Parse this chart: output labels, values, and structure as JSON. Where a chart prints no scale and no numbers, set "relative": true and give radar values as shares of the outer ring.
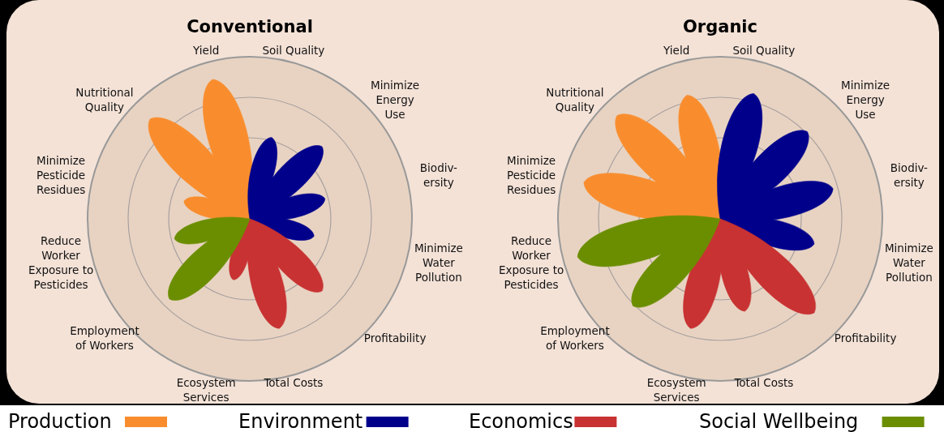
{
  "chart_data": [
    {
      "type": "radar",
      "title": "Conventional",
      "relative": true,
      "grid": true,
      "legend": "bottom",
      "categories": [
        "Yield",
        "Soil Quality",
        "Minimize\nEnergy\nUse",
        "Biodiv-\nersity",
        "Minimize\nWater\nPollution",
        "Profitability",
        "Total Costs",
        "Ecosystem\nServices",
        "Employment\nof Workers",
        "Reduce\nWorker\nExposure to\nPesticides",
        "Minimize\nPesticide\nResidues",
        "Nutritional\nQuality"
      ],
      "series": [
        {
          "name": "Production",
          "color": "#f98d2e",
          "values": [
            0.89,
            null,
            null,
            null,
            null,
            null,
            null,
            null,
            null,
            null,
            0.42,
            0.87
          ]
        },
        {
          "name": "Environment",
          "color": "#00008b",
          "values": [
            null,
            0.52,
            0.63,
            0.48,
            0.41,
            null,
            null,
            null,
            null,
            null,
            null,
            null
          ]
        },
        {
          "name": "Economics",
          "color": "#c83232",
          "values": [
            null,
            null,
            null,
            null,
            null,
            0.63,
            0.7,
            0.39,
            null,
            null,
            null,
            null
          ]
        },
        {
          "name": "Social Wellbeing",
          "color": "#6b8e00",
          "values": [
            null,
            null,
            null,
            null,
            null,
            null,
            null,
            null,
            0.7,
            0.48,
            null,
            null
          ]
        }
      ]
    },
    {
      "type": "radar",
      "title": "Organic",
      "relative": true,
      "grid": true,
      "categories": [
        "Yield",
        "Soil Quality",
        "Minimize\nEnergy\nUse",
        "Biodiv-\nersity",
        "Minimize\nWater\nPollution",
        "Profitability",
        "Total Costs",
        "Ecosystem\nServices",
        "Employment\nof Workers",
        "Reduce\nWorker\nExposure to\nPesticides",
        "Minimize\nPesticide\nResidues",
        "Nutritional\nQuality"
      ],
      "series": [
        {
          "color": "#f98d2e",
          "values": [
            0.79,
            null,
            null,
            null,
            null,
            null,
            null,
            null,
            null,
            null,
            0.87,
            0.9
          ]
        },
        {
          "color": "#00008b",
          "values": [
            null,
            0.8,
            0.76,
            0.72,
            0.6,
            null,
            null,
            null,
            null,
            null,
            null,
            null
          ]
        },
        {
          "color": "#c83232",
          "values": [
            null,
            null,
            null,
            null,
            null,
            0.82,
            0.59,
            0.7,
            null,
            null,
            null,
            null
          ]
        },
        {
          "color": "#6b8e00",
          "values": [
            null,
            null,
            null,
            null,
            null,
            null,
            null,
            null,
            0.76,
            0.91,
            null,
            null
          ]
        }
      ]
    }
  ]
}
